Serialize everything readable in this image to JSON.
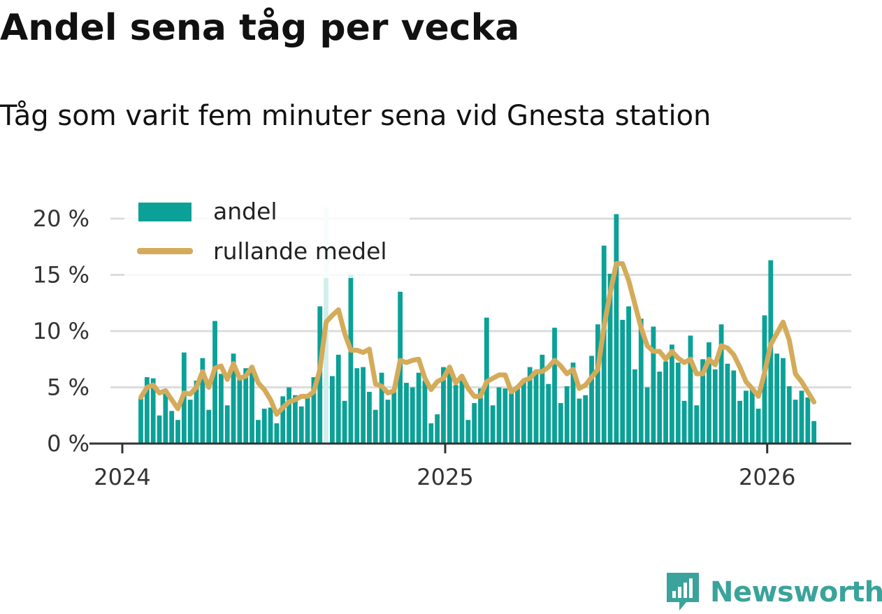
{
  "title": "Andel sena tåg per vecka",
  "subtitle": "Tåg som varit fem minuter sena vid Gnesta station",
  "brand": {
    "name": "Newsworthy",
    "color": "#3aa39b",
    "icon": "bar-chart-badge-icon"
  },
  "chart_data": {
    "type": "bar",
    "y_unit": "%",
    "ylim": [
      0,
      21
    ],
    "yticks": [
      "0 %",
      "5 %",
      "10 %",
      "15 %",
      "20 %"
    ],
    "ytick_values": [
      0,
      5,
      10,
      15,
      20
    ],
    "xticks": [
      "2024",
      "2025",
      "2026"
    ],
    "xtick_values": [
      "2024-01-01",
      "2025-01-01",
      "2026-01-01"
    ],
    "grid": "horizontal",
    "legend_placement": "top-left",
    "colors": {
      "bars": "#0ba197",
      "line": "#d4ab5a",
      "grid": "#dcdcdc",
      "axis": "#333333"
    },
    "series": [
      {
        "name": "andel",
        "kind": "bar",
        "values": [
          4.0,
          5.9,
          5.8,
          2.5,
          4.8,
          2.9,
          2.1,
          8.1,
          3.9,
          5.6,
          7.6,
          3.0,
          10.9,
          6.2,
          3.4,
          8.0,
          5.9,
          6.7,
          6.6,
          2.1,
          3.1,
          3.2,
          1.8,
          4.2,
          5.0,
          4.3,
          3.3,
          4.3,
          5.9,
          12.2,
          21.0,
          6.0,
          7.9,
          3.8,
          15.0,
          6.7,
          6.8,
          4.6,
          3.0,
          6.3,
          3.9,
          4.7,
          13.5,
          5.4,
          5.0,
          6.3,
          5.6,
          1.8,
          2.6,
          6.8,
          6.5,
          5.2,
          5.8,
          2.1,
          3.6,
          4.9,
          11.2,
          3.4,
          5.0,
          4.9,
          4.9,
          5.0,
          5.5,
          6.8,
          6.4,
          7.9,
          5.3,
          10.3,
          3.6,
          5.1,
          7.2,
          4.0,
          4.3,
          7.8,
          10.6,
          17.6,
          15.1,
          20.4,
          11.0,
          12.2,
          6.6,
          11.1,
          5.0,
          10.4,
          6.4,
          7.3,
          8.8,
          7.2,
          3.8,
          9.6,
          3.4,
          7.5,
          9.0,
          6.6,
          10.6,
          7.1,
          6.5,
          3.8,
          4.7,
          4.8,
          3.1,
          11.4,
          16.3,
          8.0,
          7.6,
          5.1,
          3.9,
          4.7,
          4.1,
          2.0
        ]
      },
      {
        "name": "rullande medel",
        "kind": "line",
        "values": [
          4.1,
          5.0,
          5.2,
          4.5,
          4.7,
          3.9,
          3.1,
          4.5,
          4.4,
          5.0,
          6.4,
          5.0,
          6.7,
          6.9,
          5.7,
          7.1,
          5.8,
          6.0,
          6.8,
          5.4,
          4.8,
          3.9,
          2.6,
          3.2,
          3.7,
          3.9,
          4.2,
          4.2,
          4.6,
          6.6,
          10.8,
          11.4,
          11.9,
          9.8,
          8.3,
          8.3,
          8.1,
          8.4,
          5.3,
          5.1,
          4.5,
          4.7,
          7.4,
          7.2,
          7.4,
          7.5,
          5.8,
          4.8,
          5.5,
          5.8,
          6.8,
          5.4,
          6.0,
          4.9,
          4.2,
          4.2,
          5.5,
          5.8,
          6.1,
          6.1,
          4.6,
          5.0,
          5.6,
          5.8,
          6.4,
          6.4,
          6.8,
          7.4,
          6.9,
          6.2,
          6.6,
          4.9,
          5.2,
          5.9,
          6.6,
          10.4,
          13.4,
          16.0,
          16.0,
          14.5,
          12.4,
          10.3,
          8.7,
          8.2,
          8.2,
          7.5,
          8.2,
          7.6,
          7.2,
          7.5,
          6.2,
          6.2,
          7.5,
          7.0,
          8.7,
          8.5,
          7.9,
          6.8,
          5.5,
          4.9,
          4.2,
          6.3,
          8.8,
          9.8,
          10.8,
          9.2,
          6.2,
          5.5,
          4.6,
          3.7
        ]
      }
    ]
  }
}
